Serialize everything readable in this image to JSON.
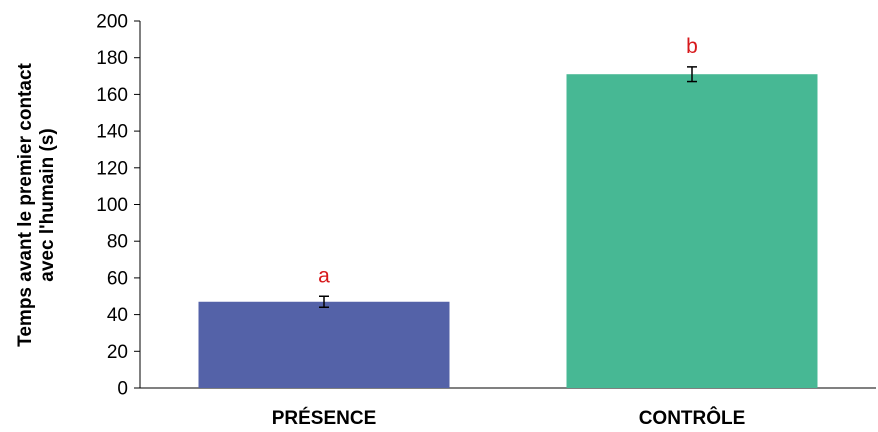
{
  "chart_data": {
    "type": "bar",
    "categories": [
      "PRÉSENCE",
      "CONTRÔLE"
    ],
    "values": [
      47,
      171
    ],
    "error": [
      3,
      4
    ],
    "significance_labels": [
      "a",
      "b"
    ],
    "colors": [
      "#5462A8",
      "#47B894"
    ],
    "label_color": "#D7191C",
    "ylabel_lines": [
      "Temps avant le premier contact",
      "avec l'humain (s)"
    ],
    "xlabel": "",
    "ylim": [
      0,
      200
    ],
    "yticks": [
      0,
      20,
      40,
      60,
      80,
      100,
      120,
      140,
      160,
      180,
      200
    ],
    "grid": false,
    "legend": "none"
  }
}
